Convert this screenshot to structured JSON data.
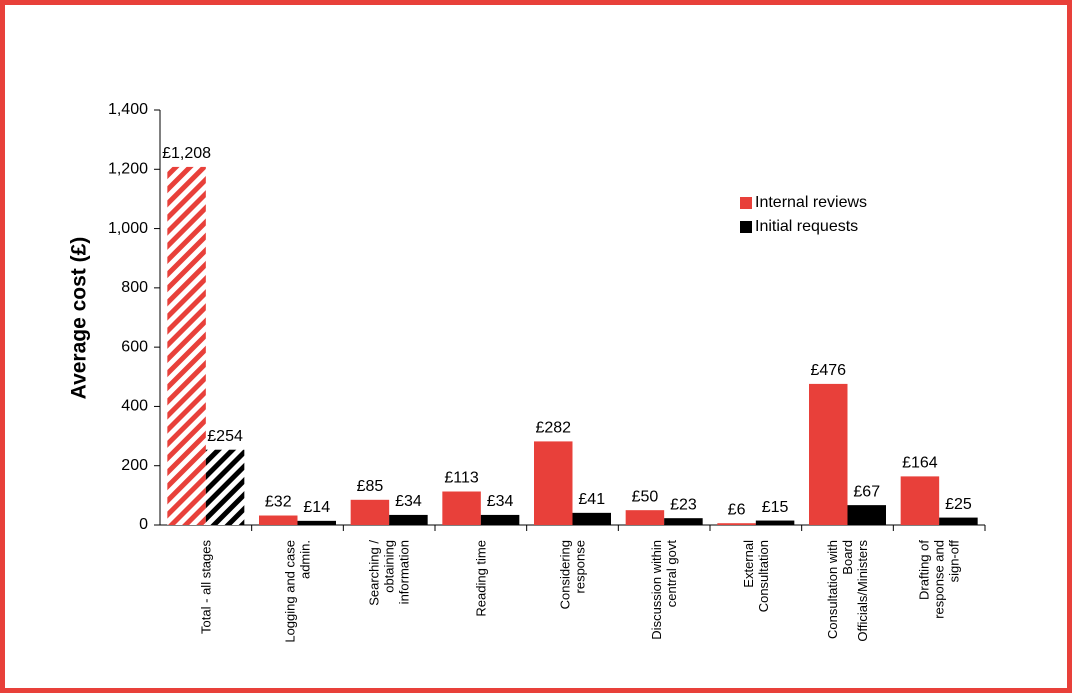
{
  "chart_data": {
    "type": "bar",
    "y_axis_label": "Average cost (£)",
    "categories": [
      [
        "Total - all stages"
      ],
      [
        "Logging and case",
        "admin."
      ],
      [
        "Searching /",
        "obtaining",
        "information"
      ],
      [
        "Reading time"
      ],
      [
        "Considering",
        "response"
      ],
      [
        "Discussion within",
        "central govt"
      ],
      [
        "External",
        "Consultation"
      ],
      [
        "Consultation with",
        "Board",
        "Officials/Ministers"
      ],
      [
        "Drafting of",
        "response and",
        "sign-off"
      ]
    ],
    "series": [
      {
        "name": "Internal reviews",
        "color": "#e8403a",
        "values": [
          1208,
          32,
          85,
          113,
          282,
          50,
          6,
          476,
          164
        ],
        "value_labels": [
          "£1,208",
          "£32",
          "£85",
          "£113",
          "£282",
          "£50",
          "£6",
          "£476",
          "£164"
        ]
      },
      {
        "name": "Initial requests",
        "color": "#000000",
        "values": [
          254,
          14,
          34,
          34,
          41,
          23,
          15,
          67,
          25
        ],
        "value_labels": [
          "£254",
          "£14",
          "£34",
          "£34",
          "£41",
          "£23",
          "£15",
          "£67",
          "£25"
        ]
      }
    ],
    "hatched_categories": [
      0
    ],
    "ylim": [
      0,
      1400
    ],
    "yticks": [
      0,
      200,
      400,
      600,
      800,
      {
        "value": 1000,
        "label": "1,000"
      },
      {
        "value": 1200,
        "label": "1,200"
      },
      {
        "value": 1400,
        "label": "1,400"
      }
    ],
    "grid": false,
    "legend": "right"
  }
}
